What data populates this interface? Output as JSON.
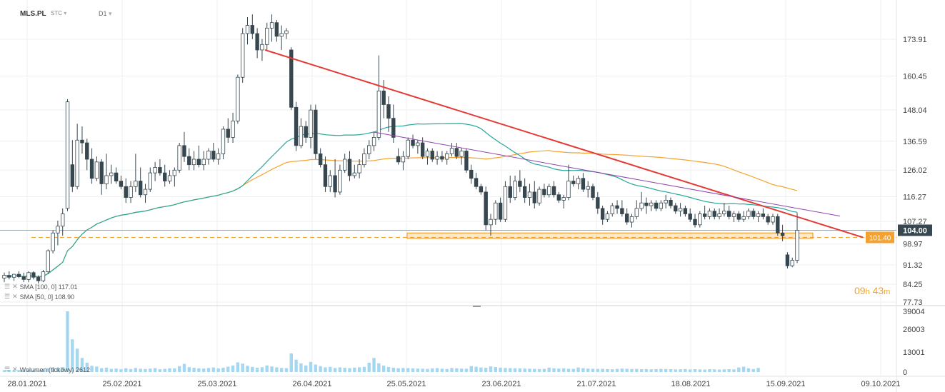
{
  "header": {
    "symbol": "MLS.PL",
    "type": "STC",
    "interval": "D1"
  },
  "indicators": [
    {
      "label": "SMA [100, 0] 117.01",
      "color": "#f4a22d"
    },
    {
      "label": "SMA [50, 0] 108.90",
      "color": "#26a69a"
    }
  ],
  "volume_label": "Wolumen (tickowy) 2612",
  "timer": {
    "hours": "09",
    "h_unit": "h",
    "minutes": "43",
    "m_unit": "m"
  },
  "colors": {
    "candle_down": "#37474f",
    "candle_up_border": "#37474f",
    "sma100": "#f4a22d",
    "sma50": "#26a69a",
    "trendline": "#e53935",
    "trendline2": "#8e44ad",
    "support": "#f4a22d",
    "volume": "#a6d7f0",
    "price_tag_bg": "#37474f",
    "level_tag_bg": "#f4a22d"
  },
  "chart_data": {
    "type": "candlestick",
    "y_ticks": [
      173.91,
      160.45,
      148.04,
      136.59,
      126.02,
      116.27,
      107.27,
      98.97,
      91.32,
      84.25,
      77.73
    ],
    "y_tick_labels": [
      "173.91",
      "160.45",
      "148.04",
      "136.59",
      "126.02",
      "116.27",
      "107.27",
      "98.97",
      "91.32",
      "84.25",
      "77.73"
    ],
    "x_tick_labels": [
      "28.01.2021",
      "25.02.2021",
      "25.03.2021",
      "26.04.2021",
      "25.05.2021",
      "23.06.2021",
      "21.07.2021",
      "18.08.2021",
      "15.09.2021",
      "09.10.2021"
    ],
    "current_price": 104.0,
    "current_price_label": "104.00",
    "support_level": 101.4,
    "support_level_label": "101.40",
    "volume_ticks": [
      39004,
      26003,
      13001,
      0
    ],
    "volume_tick_labels": [
      "39004",
      "26003",
      "13001",
      "0"
    ],
    "candles": [
      {
        "o": 86.5,
        "h": 88.5,
        "l": 85.0,
        "c": 87.5
      },
      {
        "o": 87.5,
        "h": 89.0,
        "l": 86.0,
        "c": 86.8
      },
      {
        "o": 86.8,
        "h": 88.0,
        "l": 85.5,
        "c": 87.9
      },
      {
        "o": 87.9,
        "h": 89.0,
        "l": 86.5,
        "c": 87.0
      },
      {
        "o": 87.0,
        "h": 88.5,
        "l": 85.0,
        "c": 86.0
      },
      {
        "o": 86.0,
        "h": 89.0,
        "l": 85.0,
        "c": 88.5
      },
      {
        "o": 88.5,
        "h": 89.0,
        "l": 86.0,
        "c": 86.8
      },
      {
        "o": 86.8,
        "h": 87.5,
        "l": 84.5,
        "c": 85.5
      },
      {
        "o": 85.5,
        "h": 89.5,
        "l": 85.0,
        "c": 88.8
      },
      {
        "o": 88.8,
        "h": 97.0,
        "l": 88.0,
        "c": 96.5
      },
      {
        "o": 96.5,
        "h": 104.0,
        "l": 95.5,
        "c": 103.0
      },
      {
        "o": 103.0,
        "h": 107.5,
        "l": 98.5,
        "c": 105.5
      },
      {
        "o": 105.5,
        "h": 112.0,
        "l": 102.0,
        "c": 110.0
      },
      {
        "o": 112.0,
        "h": 152.0,
        "l": 111.0,
        "c": 151.0
      },
      {
        "o": 128.0,
        "h": 137.0,
        "l": 118.0,
        "c": 120.0
      },
      {
        "o": 120.0,
        "h": 143.0,
        "l": 119.0,
        "c": 137.0
      },
      {
        "o": 137.0,
        "h": 142.0,
        "l": 132.0,
        "c": 136.0
      },
      {
        "o": 136.0,
        "h": 137.5,
        "l": 126.0,
        "c": 130.0
      },
      {
        "o": 130.0,
        "h": 134.0,
        "l": 121.0,
        "c": 123.0
      },
      {
        "o": 123.0,
        "h": 131.0,
        "l": 122.0,
        "c": 129.0
      },
      {
        "o": 129.0,
        "h": 130.0,
        "l": 117.0,
        "c": 121.0
      },
      {
        "o": 121.0,
        "h": 132.0,
        "l": 119.0,
        "c": 124.0
      },
      {
        "o": 124.0,
        "h": 128.0,
        "l": 121.0,
        "c": 125.0
      },
      {
        "o": 125.0,
        "h": 127.0,
        "l": 121.0,
        "c": 122.0
      },
      {
        "o": 122.0,
        "h": 124.0,
        "l": 119.0,
        "c": 120.0
      },
      {
        "o": 120.0,
        "h": 123.0,
        "l": 114.0,
        "c": 116.0
      },
      {
        "o": 116.0,
        "h": 122.0,
        "l": 114.0,
        "c": 120.0
      },
      {
        "o": 120.0,
        "h": 132.0,
        "l": 118.0,
        "c": 122.0
      },
      {
        "o": 122.0,
        "h": 127.0,
        "l": 116.0,
        "c": 117.0
      },
      {
        "o": 117.0,
        "h": 121.0,
        "l": 114.0,
        "c": 119.0
      },
      {
        "o": 119.0,
        "h": 127.0,
        "l": 118.0,
        "c": 125.0
      },
      {
        "o": 125.0,
        "h": 129.0,
        "l": 122.0,
        "c": 127.0
      },
      {
        "o": 127.0,
        "h": 130.0,
        "l": 124.0,
        "c": 125.0
      },
      {
        "o": 125.0,
        "h": 128.0,
        "l": 120.0,
        "c": 122.0
      },
      {
        "o": 122.0,
        "h": 126.0,
        "l": 121.0,
        "c": 124.0
      },
      {
        "o": 124.0,
        "h": 127.0,
        "l": 120.0,
        "c": 126.0
      },
      {
        "o": 126.0,
        "h": 136.0,
        "l": 125.0,
        "c": 135.0
      },
      {
        "o": 135.0,
        "h": 140.0,
        "l": 129.0,
        "c": 131.0
      },
      {
        "o": 131.0,
        "h": 134.0,
        "l": 126.0,
        "c": 128.0
      },
      {
        "o": 128.0,
        "h": 133.0,
        "l": 126.0,
        "c": 130.0
      },
      {
        "o": 130.0,
        "h": 135.0,
        "l": 127.0,
        "c": 128.0
      },
      {
        "o": 128.0,
        "h": 133.0,
        "l": 126.0,
        "c": 130.0
      },
      {
        "o": 130.0,
        "h": 134.0,
        "l": 128.0,
        "c": 133.0
      },
      {
        "o": 133.0,
        "h": 136.0,
        "l": 129.0,
        "c": 130.0
      },
      {
        "o": 130.0,
        "h": 134.0,
        "l": 128.0,
        "c": 132.0
      },
      {
        "o": 132.0,
        "h": 142.0,
        "l": 130.0,
        "c": 141.0
      },
      {
        "o": 141.0,
        "h": 145.0,
        "l": 136.0,
        "c": 138.0
      },
      {
        "o": 138.0,
        "h": 147.0,
        "l": 136.0,
        "c": 144.0
      },
      {
        "o": 144.0,
        "h": 161.0,
        "l": 143.0,
        "c": 160.0
      },
      {
        "o": 160.0,
        "h": 178.0,
        "l": 158.0,
        "c": 176.0
      },
      {
        "o": 176.0,
        "h": 182.0,
        "l": 172.0,
        "c": 179.0
      },
      {
        "o": 179.0,
        "h": 183.0,
        "l": 174.0,
        "c": 176.0
      },
      {
        "o": 176.0,
        "h": 178.0,
        "l": 167.0,
        "c": 170.0
      },
      {
        "o": 170.0,
        "h": 174.0,
        "l": 166.0,
        "c": 172.0
      },
      {
        "o": 172.0,
        "h": 180.0,
        "l": 170.0,
        "c": 178.0
      },
      {
        "o": 178.0,
        "h": 183.0,
        "l": 173.0,
        "c": 180.0
      },
      {
        "o": 180.0,
        "h": 181.0,
        "l": 173.0,
        "c": 175.0
      },
      {
        "o": 175.0,
        "h": 179.0,
        "l": 170.0,
        "c": 176.0
      },
      {
        "o": 176.0,
        "h": 178.0,
        "l": 174.0,
        "c": 177.0
      },
      {
        "o": 170.0,
        "h": 171.0,
        "l": 148.0,
        "c": 149.0
      },
      {
        "o": 149.0,
        "h": 151.0,
        "l": 133.0,
        "c": 135.0
      },
      {
        "o": 135.0,
        "h": 145.0,
        "l": 134.0,
        "c": 142.0
      },
      {
        "o": 142.0,
        "h": 144.0,
        "l": 136.0,
        "c": 138.0
      },
      {
        "o": 138.0,
        "h": 150.0,
        "l": 134.0,
        "c": 148.0
      },
      {
        "o": 148.0,
        "h": 150.0,
        "l": 130.0,
        "c": 132.0
      },
      {
        "o": 132.0,
        "h": 134.0,
        "l": 127.0,
        "c": 128.0
      },
      {
        "o": 128.0,
        "h": 131.0,
        "l": 118.0,
        "c": 120.0
      },
      {
        "o": 120.0,
        "h": 126.0,
        "l": 118.0,
        "c": 124.0
      },
      {
        "o": 124.0,
        "h": 130.0,
        "l": 116.0,
        "c": 118.0
      },
      {
        "o": 118.0,
        "h": 128.0,
        "l": 117.0,
        "c": 126.0
      },
      {
        "o": 126.0,
        "h": 132.0,
        "l": 125.0,
        "c": 130.0
      },
      {
        "o": 130.0,
        "h": 133.0,
        "l": 122.0,
        "c": 124.0
      },
      {
        "o": 124.0,
        "h": 128.0,
        "l": 123.0,
        "c": 125.0
      },
      {
        "o": 125.0,
        "h": 130.0,
        "l": 123.0,
        "c": 128.0
      },
      {
        "o": 128.0,
        "h": 134.0,
        "l": 127.0,
        "c": 132.0
      },
      {
        "o": 132.0,
        "h": 137.0,
        "l": 130.0,
        "c": 135.0
      },
      {
        "o": 135.0,
        "h": 140.0,
        "l": 133.0,
        "c": 138.0
      },
      {
        "o": 138.0,
        "h": 168.0,
        "l": 137.0,
        "c": 155.0
      },
      {
        "o": 155.0,
        "h": 159.0,
        "l": 145.0,
        "c": 150.0
      },
      {
        "o": 150.0,
        "h": 153.0,
        "l": 140.0,
        "c": 145.0
      },
      {
        "o": 145.0,
        "h": 150.0,
        "l": 136.0,
        "c": 138.0
      },
      {
        "o": 131.0,
        "h": 134.0,
        "l": 128.0,
        "c": 129.0
      },
      {
        "o": 129.0,
        "h": 133.0,
        "l": 126.0,
        "c": 131.0
      },
      {
        "o": 131.0,
        "h": 138.0,
        "l": 130.0,
        "c": 137.0
      },
      {
        "o": 137.0,
        "h": 139.0,
        "l": 134.0,
        "c": 135.0
      },
      {
        "o": 135.0,
        "h": 137.0,
        "l": 132.0,
        "c": 136.0
      },
      {
        "o": 136.0,
        "h": 138.0,
        "l": 130.0,
        "c": 131.0
      },
      {
        "o": 131.0,
        "h": 134.0,
        "l": 128.0,
        "c": 133.0
      },
      {
        "o": 133.0,
        "h": 134.0,
        "l": 129.0,
        "c": 130.0
      },
      {
        "o": 130.0,
        "h": 133.0,
        "l": 128.0,
        "c": 131.0
      },
      {
        "o": 131.0,
        "h": 133.0,
        "l": 129.0,
        "c": 130.0
      },
      {
        "o": 130.0,
        "h": 133.0,
        "l": 128.0,
        "c": 132.0
      },
      {
        "o": 132.0,
        "h": 136.0,
        "l": 131.0,
        "c": 134.0
      },
      {
        "o": 134.0,
        "h": 136.0,
        "l": 130.0,
        "c": 131.0
      },
      {
        "o": 131.0,
        "h": 134.0,
        "l": 128.0,
        "c": 133.0
      },
      {
        "o": 133.0,
        "h": 134.0,
        "l": 125.0,
        "c": 126.0
      },
      {
        "o": 126.0,
        "h": 128.0,
        "l": 121.0,
        "c": 123.0
      },
      {
        "o": 123.0,
        "h": 125.0,
        "l": 119.0,
        "c": 120.0
      },
      {
        "o": 120.0,
        "h": 121.0,
        "l": 117.0,
        "c": 118.0
      },
      {
        "o": 118.0,
        "h": 120.0,
        "l": 104.0,
        "c": 106.0
      },
      {
        "o": 106.0,
        "h": 110.0,
        "l": 102.0,
        "c": 108.0
      },
      {
        "o": 108.0,
        "h": 115.0,
        "l": 106.0,
        "c": 114.0
      },
      {
        "o": 114.0,
        "h": 116.0,
        "l": 107.0,
        "c": 108.0
      },
      {
        "o": 108.0,
        "h": 122.0,
        "l": 107.0,
        "c": 120.0
      },
      {
        "o": 120.0,
        "h": 124.0,
        "l": 114.0,
        "c": 116.0
      },
      {
        "o": 116.0,
        "h": 124.0,
        "l": 115.0,
        "c": 122.0
      },
      {
        "o": 122.0,
        "h": 126.0,
        "l": 118.0,
        "c": 120.0
      },
      {
        "o": 120.0,
        "h": 123.0,
        "l": 114.0,
        "c": 116.0
      },
      {
        "o": 116.0,
        "h": 121.0,
        "l": 113.0,
        "c": 118.0
      },
      {
        "o": 118.0,
        "h": 122.0,
        "l": 112.0,
        "c": 114.0
      },
      {
        "o": 114.0,
        "h": 120.0,
        "l": 113.0,
        "c": 119.0
      },
      {
        "o": 119.0,
        "h": 121.0,
        "l": 116.0,
        "c": 117.0
      },
      {
        "o": 117.0,
        "h": 121.0,
        "l": 116.0,
        "c": 120.0
      },
      {
        "o": 120.0,
        "h": 122.0,
        "l": 116.0,
        "c": 117.0
      },
      {
        "o": 117.0,
        "h": 118.0,
        "l": 114.0,
        "c": 115.0
      },
      {
        "o": 115.0,
        "h": 117.0,
        "l": 112.0,
        "c": 116.0
      },
      {
        "o": 116.0,
        "h": 128.0,
        "l": 115.0,
        "c": 122.0
      },
      {
        "o": 122.0,
        "h": 124.0,
        "l": 120.0,
        "c": 121.0
      },
      {
        "o": 121.0,
        "h": 124.0,
        "l": 119.0,
        "c": 123.0
      },
      {
        "o": 123.0,
        "h": 125.0,
        "l": 118.0,
        "c": 119.0
      },
      {
        "o": 119.0,
        "h": 122.0,
        "l": 116.0,
        "c": 120.0
      },
      {
        "o": 120.0,
        "h": 121.0,
        "l": 115.0,
        "c": 116.0
      },
      {
        "o": 116.0,
        "h": 118.0,
        "l": 110.0,
        "c": 112.0
      },
      {
        "o": 112.0,
        "h": 113.0,
        "l": 106.0,
        "c": 108.0
      },
      {
        "o": 108.0,
        "h": 111.0,
        "l": 107.0,
        "c": 110.0
      },
      {
        "o": 110.0,
        "h": 114.0,
        "l": 109.0,
        "c": 113.0
      },
      {
        "o": 113.0,
        "h": 115.0,
        "l": 110.0,
        "c": 112.0
      },
      {
        "o": 112.0,
        "h": 115.0,
        "l": 109.0,
        "c": 110.0
      },
      {
        "o": 110.0,
        "h": 112.0,
        "l": 106.0,
        "c": 107.0
      },
      {
        "o": 107.0,
        "h": 110.0,
        "l": 105.0,
        "c": 109.0
      },
      {
        "o": 109.0,
        "h": 115.0,
        "l": 108.0,
        "c": 112.0
      },
      {
        "o": 112.0,
        "h": 118.0,
        "l": 111.0,
        "c": 114.0
      },
      {
        "o": 114.0,
        "h": 116.0,
        "l": 110.0,
        "c": 113.0
      },
      {
        "o": 113.0,
        "h": 115.0,
        "l": 111.0,
        "c": 114.0
      },
      {
        "o": 114.0,
        "h": 115.0,
        "l": 111.0,
        "c": 112.0
      },
      {
        "o": 112.0,
        "h": 115.0,
        "l": 111.0,
        "c": 114.0
      },
      {
        "o": 114.0,
        "h": 117.0,
        "l": 112.0,
        "c": 115.0
      },
      {
        "o": 115.0,
        "h": 116.0,
        "l": 112.0,
        "c": 113.0
      },
      {
        "o": 113.0,
        "h": 114.0,
        "l": 110.0,
        "c": 111.0
      },
      {
        "o": 111.0,
        "h": 114.0,
        "l": 109.0,
        "c": 112.0
      },
      {
        "o": 112.0,
        "h": 113.0,
        "l": 109.0,
        "c": 110.0
      },
      {
        "o": 110.0,
        "h": 112.0,
        "l": 107.0,
        "c": 108.0
      },
      {
        "o": 108.0,
        "h": 110.0,
        "l": 105.0,
        "c": 106.0
      },
      {
        "o": 106.0,
        "h": 111.0,
        "l": 105.0,
        "c": 110.0
      },
      {
        "o": 110.0,
        "h": 113.0,
        "l": 108.0,
        "c": 109.0
      },
      {
        "o": 109.0,
        "h": 112.0,
        "l": 108.0,
        "c": 111.0
      },
      {
        "o": 111.0,
        "h": 112.0,
        "l": 108.0,
        "c": 109.0
      },
      {
        "o": 109.0,
        "h": 112.0,
        "l": 108.0,
        "c": 110.0
      },
      {
        "o": 110.0,
        "h": 114.0,
        "l": 109.0,
        "c": 111.0
      },
      {
        "o": 111.0,
        "h": 113.0,
        "l": 108.0,
        "c": 109.0
      },
      {
        "o": 109.0,
        "h": 111.0,
        "l": 107.0,
        "c": 110.0
      },
      {
        "o": 110.0,
        "h": 111.0,
        "l": 107.0,
        "c": 108.0
      },
      {
        "o": 108.0,
        "h": 111.0,
        "l": 107.0,
        "c": 109.0
      },
      {
        "o": 109.0,
        "h": 112.0,
        "l": 108.0,
        "c": 111.0
      },
      {
        "o": 111.0,
        "h": 112.0,
        "l": 108.0,
        "c": 109.0
      },
      {
        "o": 109.0,
        "h": 111.0,
        "l": 107.0,
        "c": 110.0
      },
      {
        "o": 110.0,
        "h": 112.0,
        "l": 108.0,
        "c": 109.0
      },
      {
        "o": 109.0,
        "h": 110.0,
        "l": 106.0,
        "c": 107.0
      },
      {
        "o": 107.0,
        "h": 110.0,
        "l": 106.0,
        "c": 109.0
      },
      {
        "o": 109.0,
        "h": 110.0,
        "l": 102.0,
        "c": 103.0
      },
      {
        "o": 103.0,
        "h": 106.0,
        "l": 100.0,
        "c": 102.0
      },
      {
        "o": 95.0,
        "h": 96.0,
        "l": 90.0,
        "c": 91.0
      },
      {
        "o": 91.0,
        "h": 94.0,
        "l": 90.5,
        "c": 93.0
      },
      {
        "o": 93.0,
        "h": 110.5,
        "l": 92.0,
        "c": 104.0
      }
    ],
    "volumes": [
      1200,
      1400,
      1100,
      1300,
      1000,
      1500,
      1200,
      1100,
      1600,
      2500,
      3000,
      2600,
      3200,
      39004,
      21000,
      15000,
      9000,
      6000,
      4000,
      3500,
      2500,
      2800,
      2000,
      2200,
      1800,
      2400,
      1900,
      2600,
      2100,
      1900,
      2200,
      2500,
      1800,
      2000,
      2400,
      2300,
      3800,
      5200,
      3100,
      2700,
      2400,
      2200,
      2600,
      2900,
      2300,
      2800,
      3400,
      4200,
      6200,
      5400,
      4000,
      3300,
      2800,
      3100,
      4200,
      3600,
      3000,
      2600,
      2500,
      12000,
      8000,
      5500,
      4200,
      6500,
      4800,
      3800,
      3000,
      3300,
      2600,
      3000,
      2700,
      2500,
      2800,
      3000,
      3300,
      6000,
      9000,
      5600,
      4100,
      3200,
      2800,
      2400,
      2600,
      2500,
      2300,
      2200,
      2100,
      2000,
      2300,
      2500,
      2100,
      1900,
      2600,
      2400,
      2200,
      2100,
      3800,
      3400,
      2900,
      2700,
      3600,
      3200,
      2800,
      2600,
      2500,
      2400,
      2300,
      2200,
      2100,
      2000,
      1900,
      2000,
      2800,
      2400,
      2200,
      2300,
      2100,
      2000,
      2900,
      2500,
      2200,
      2100,
      2000,
      2100,
      1900,
      1800,
      2000,
      2200,
      2100,
      1900,
      2000,
      1800,
      1900,
      1700,
      1800,
      2000,
      1900,
      1800,
      1700,
      1800,
      1900,
      1700,
      1800,
      1700,
      1600,
      1800,
      1700,
      1600,
      1700,
      1800,
      1700,
      2900,
      3400,
      2400,
      1900,
      2612
    ]
  }
}
